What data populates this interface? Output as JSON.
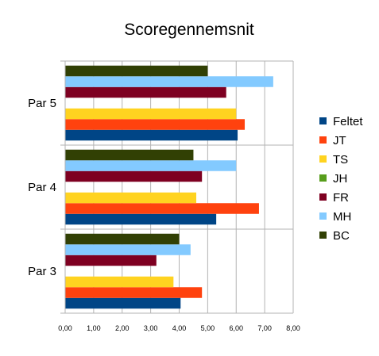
{
  "chart_data": {
    "type": "bar",
    "orientation": "horizontal",
    "title": "Scoregennemsnit",
    "xlabel": "",
    "ylabel": "",
    "xlim": [
      0,
      8
    ],
    "x_ticks": [
      "0,00",
      "1,00",
      "2,00",
      "3,00",
      "4,00",
      "5,00",
      "6,00",
      "7,00",
      "8,00"
    ],
    "categories": [
      "Par 5",
      "Par 4",
      "Par 3"
    ],
    "series": [
      {
        "name": "Feltet",
        "color": "#004586",
        "values": [
          6.05,
          5.3,
          4.05
        ]
      },
      {
        "name": "JT",
        "color": "#ff420e",
        "values": [
          6.3,
          6.8,
          4.8
        ]
      },
      {
        "name": "TS",
        "color": "#ffd320",
        "values": [
          6.0,
          4.6,
          3.8
        ]
      },
      {
        "name": "JH",
        "color": "#579d1c",
        "values": [
          0,
          0,
          0
        ]
      },
      {
        "name": "FR",
        "color": "#7e0021",
        "values": [
          5.65,
          4.8,
          3.2
        ]
      },
      {
        "name": "MH",
        "color": "#83caff",
        "values": [
          7.3,
          6.0,
          4.4
        ]
      },
      {
        "name": "BC",
        "color": "#314004",
        "values": [
          5.0,
          4.5,
          4.0
        ]
      }
    ],
    "grid": true,
    "legend": "right"
  }
}
